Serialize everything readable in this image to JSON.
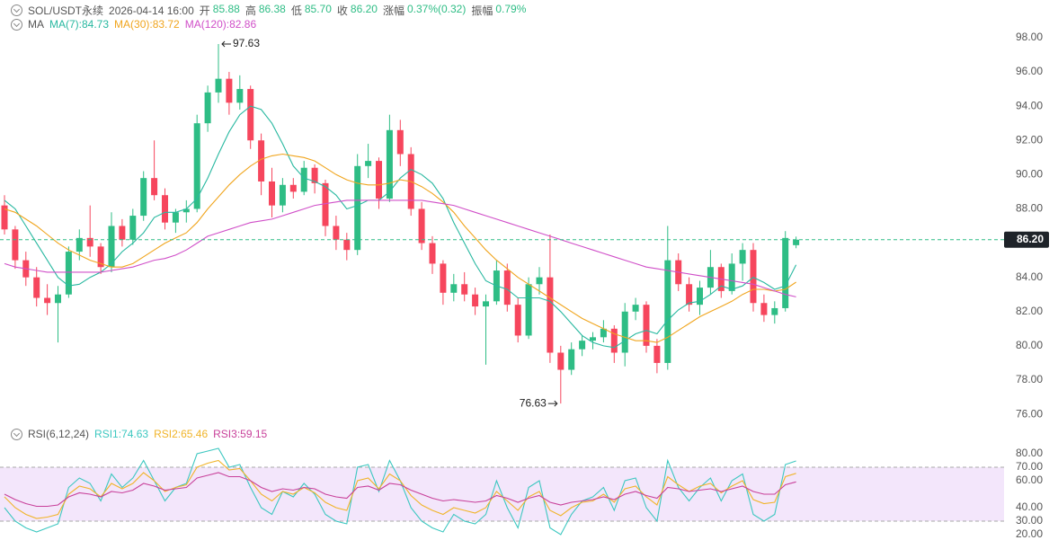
{
  "header": {
    "symbol": "SOL/USDT永续",
    "datetime": "2026-04-14 16:00",
    "fields": [
      {
        "label": "开",
        "value": "85.88"
      },
      {
        "label": "高",
        "value": "86.38"
      },
      {
        "label": "低",
        "value": "85.70"
      },
      {
        "label": "收",
        "value": "86.20"
      },
      {
        "label": "涨幅",
        "value": "0.37%(0.32)"
      },
      {
        "label": "振幅",
        "value": "0.79%"
      }
    ]
  },
  "chart_data": [
    {
      "type": "candlestick",
      "legend_title": "MA",
      "up_color": "#2ebd85",
      "down_color": "#f6465d",
      "ohlc": [
        [
          88.2,
          88.8,
          86.5,
          86.8
        ],
        [
          86.8,
          87.0,
          84.5,
          85.0
        ],
        [
          85.0,
          85.5,
          83.5,
          84.0
        ],
        [
          84.0,
          84.6,
          82.3,
          82.8
        ],
        [
          82.8,
          83.6,
          81.8,
          82.5
        ],
        [
          82.5,
          83.5,
          80.2,
          83.0
        ],
        [
          83.0,
          85.8,
          82.8,
          85.5
        ],
        [
          85.5,
          86.8,
          85.0,
          86.3
        ],
        [
          86.3,
          88.2,
          85.2,
          85.8
        ],
        [
          85.8,
          86.0,
          84.2,
          84.6
        ],
        [
          84.6,
          87.8,
          84.3,
          87.0
        ],
        [
          87.0,
          87.4,
          85.8,
          86.2
        ],
        [
          86.2,
          88.0,
          85.9,
          87.6
        ],
        [
          87.6,
          90.2,
          87.3,
          89.8
        ],
        [
          89.8,
          92.0,
          88.5,
          88.8
        ],
        [
          88.8,
          89.2,
          86.8,
          87.2
        ],
        [
          87.2,
          88.0,
          86.6,
          87.8
        ],
        [
          87.8,
          88.5,
          87.2,
          88.0
        ],
        [
          88.0,
          93.5,
          87.8,
          93.0
        ],
        [
          93.0,
          95.2,
          92.5,
          94.8
        ],
        [
          94.8,
          97.63,
          94.2,
          95.6
        ],
        [
          95.6,
          96.0,
          93.5,
          94.2
        ],
        [
          94.2,
          95.8,
          93.8,
          95.0
        ],
        [
          95.0,
          95.2,
          91.5,
          92.0
        ],
        [
          92.0,
          92.4,
          88.8,
          89.6
        ],
        [
          89.6,
          90.4,
          87.5,
          88.2
        ],
        [
          88.2,
          89.8,
          87.8,
          89.4
        ],
        [
          89.4,
          89.8,
          88.6,
          89.0
        ],
        [
          89.0,
          90.8,
          88.8,
          90.4
        ],
        [
          90.4,
          90.6,
          88.9,
          89.5
        ],
        [
          89.5,
          89.7,
          86.4,
          87.0
        ],
        [
          87.0,
          87.6,
          85.6,
          86.2
        ],
        [
          86.2,
          86.6,
          85.0,
          85.6
        ],
        [
          85.6,
          91.2,
          85.3,
          90.5
        ],
        [
          90.5,
          91.8,
          89.8,
          90.8
        ],
        [
          90.8,
          91.0,
          88.0,
          88.6
        ],
        [
          88.6,
          93.5,
          88.4,
          92.6
        ],
        [
          92.6,
          93.2,
          90.5,
          91.2
        ],
        [
          91.2,
          91.6,
          87.6,
          88.0
        ],
        [
          88.0,
          88.4,
          85.6,
          86.0
        ],
        [
          86.0,
          86.4,
          84.2,
          84.8
        ],
        [
          84.8,
          85.0,
          82.4,
          83.1
        ],
        [
          83.1,
          84.2,
          82.6,
          83.6
        ],
        [
          83.6,
          84.3,
          82.6,
          83.0
        ],
        [
          83.0,
          83.4,
          81.8,
          82.3
        ],
        [
          82.3,
          83.0,
          78.9,
          82.6
        ],
        [
          82.6,
          85.0,
          82.4,
          84.4
        ],
        [
          84.4,
          84.8,
          82.0,
          82.4
        ],
        [
          82.4,
          82.8,
          80.2,
          80.6
        ],
        [
          80.6,
          84.0,
          80.4,
          83.6
        ],
        [
          83.6,
          84.6,
          83.0,
          84.0
        ],
        [
          84.0,
          86.5,
          79.0,
          79.6
        ],
        [
          79.6,
          80.0,
          76.63,
          78.6
        ],
        [
          78.6,
          80.2,
          78.3,
          79.8
        ],
        [
          79.8,
          80.6,
          79.4,
          80.3
        ],
        [
          80.3,
          80.8,
          79.8,
          80.5
        ],
        [
          80.5,
          81.5,
          80.2,
          81.0
        ],
        [
          81.0,
          81.2,
          79.0,
          79.6
        ],
        [
          79.6,
          82.5,
          78.8,
          82.0
        ],
        [
          82.0,
          82.8,
          81.5,
          82.4
        ],
        [
          82.4,
          82.6,
          79.6,
          80.0
        ],
        [
          80.0,
          80.4,
          78.4,
          79.0
        ],
        [
          79.0,
          87.0,
          78.6,
          85.0
        ],
        [
          85.0,
          85.4,
          83.2,
          83.6
        ],
        [
          83.6,
          84.0,
          82.0,
          82.4
        ],
        [
          82.4,
          83.8,
          81.8,
          83.4
        ],
        [
          83.4,
          85.6,
          83.0,
          84.6
        ],
        [
          84.6,
          84.8,
          82.8,
          83.2
        ],
        [
          83.2,
          85.4,
          83.0,
          84.8
        ],
        [
          84.8,
          86.0,
          83.8,
          85.6
        ],
        [
          85.6,
          86.0,
          82.0,
          82.5
        ],
        [
          82.5,
          83.0,
          81.4,
          81.8
        ],
        [
          81.8,
          82.6,
          81.3,
          82.2
        ],
        [
          82.2,
          86.7,
          82.0,
          86.3
        ],
        [
          85.88,
          86.38,
          85.7,
          86.2
        ]
      ],
      "series": [
        {
          "name": "MA(7):84.73",
          "color": "#28b8a0",
          "values": [
            88.5,
            88,
            87,
            86,
            85,
            84,
            83.5,
            83.6,
            84,
            84.3,
            84.8,
            85.5,
            86,
            86.6,
            87.5,
            87.8,
            87.8,
            88,
            88.6,
            89.8,
            91.2,
            92.5,
            93.5,
            94,
            93.8,
            93,
            91.8,
            90.5,
            89.8,
            89.6,
            89.3,
            88.8,
            88,
            88.2,
            88.5,
            88.5,
            89,
            89.8,
            90.3,
            90,
            89.5,
            88.6,
            87.2,
            86,
            84.8,
            83.8,
            83.5,
            83.3,
            82.8,
            82.8,
            82.8,
            82.6,
            82,
            81.3,
            80.6,
            80.2,
            80,
            79.9,
            80.3,
            80.7,
            80.9,
            80.7,
            81.5,
            82.1,
            82.5,
            82.6,
            83,
            83.5,
            83.3,
            83.5,
            84,
            83.7,
            83.3,
            83.5,
            84.73
          ]
        },
        {
          "name": "MA(30):83.72",
          "color": "#f0a51e",
          "values": [
            88.0,
            87.8,
            87.4,
            87.0,
            86.5,
            86.0,
            85.6,
            85.3,
            85.0,
            84.8,
            84.6,
            84.6,
            84.8,
            85.2,
            85.6,
            86.0,
            86.3,
            86.6,
            87.2,
            88.0,
            88.7,
            89.4,
            90.0,
            90.5,
            90.9,
            91.1,
            91.2,
            91.1,
            91.0,
            90.8,
            90.4,
            90.0,
            89.7,
            89.5,
            89.4,
            89.4,
            89.5,
            89.7,
            89.6,
            89.3,
            88.9,
            88.4,
            87.8,
            87.0,
            86.3,
            85.6,
            85.0,
            84.5,
            84.0,
            83.6,
            83.2,
            82.8,
            82.4,
            82.0,
            81.6,
            81.3,
            81.0,
            80.7,
            80.5,
            80.3,
            80.3,
            80.2,
            80.5,
            80.9,
            81.3,
            81.7,
            82.0,
            82.3,
            82.6,
            83.0,
            83.3,
            83.3,
            83.2,
            83.3,
            83.72
          ]
        },
        {
          "name": "MA(120):82.86",
          "color": "#d04fc8",
          "values": [
            84.8,
            84.6,
            84.5,
            84.4,
            84.3,
            84.3,
            84.3,
            84.3,
            84.3,
            84.3,
            84.4,
            84.5,
            84.6,
            84.8,
            85.0,
            85.1,
            85.3,
            85.6,
            86.0,
            86.4,
            86.6,
            86.8,
            87.0,
            87.2,
            87.3,
            87.4,
            87.6,
            87.8,
            88.0,
            88.2,
            88.3,
            88.4,
            88.5,
            88.5,
            88.5,
            88.5,
            88.5,
            88.5,
            88.5,
            88.5,
            88.4,
            88.3,
            88.2,
            88.0,
            87.8,
            87.6,
            87.4,
            87.2,
            87.0,
            86.8,
            86.6,
            86.4,
            86.2,
            86.0,
            85.8,
            85.6,
            85.4,
            85.2,
            85.0,
            84.8,
            84.6,
            84.5,
            84.4,
            84.3,
            84.2,
            84.1,
            84.0,
            83.9,
            83.8,
            83.7,
            83.6,
            83.4,
            83.2,
            83.0,
            82.86
          ]
        }
      ],
      "last_price": {
        "value": 86.2,
        "label": "86.20"
      },
      "max_label": {
        "value": 97.63,
        "label": "97.63"
      },
      "min_label": {
        "value": 76.63,
        "label": "76.63"
      },
      "ylim": [
        75.27,
        100.2
      ],
      "yticks": [
        {
          "value": 76,
          "label": "76.00"
        },
        {
          "value": 78,
          "label": "78.00"
        },
        {
          "value": 80,
          "label": "80.00"
        },
        {
          "value": 82,
          "label": "82.00"
        },
        {
          "value": 84,
          "label": "84.00"
        },
        {
          "value": 86,
          "label": "86.00"
        },
        {
          "value": 88,
          "label": "88.00"
        },
        {
          "value": 90,
          "label": "90.00"
        },
        {
          "value": 92,
          "label": "92.00"
        },
        {
          "value": 94,
          "label": "94.00"
        },
        {
          "value": 96,
          "label": "96.00"
        },
        {
          "value": 98,
          "label": "98.00"
        }
      ],
      "grid": false
    },
    {
      "type": "line",
      "legend_title": "RSI(6,12,24)",
      "band": [
        30,
        70
      ],
      "band_color": "#f3e6fb",
      "series": [
        {
          "name": "RSI1:74.63",
          "color": "#3cc7c0",
          "values": [
            40,
            30,
            25,
            22,
            25,
            28,
            55,
            62,
            58,
            45,
            65,
            55,
            62,
            75,
            60,
            45,
            55,
            58,
            80,
            82,
            84,
            70,
            72,
            55,
            40,
            35,
            52,
            48,
            58,
            50,
            35,
            30,
            28,
            70,
            72,
            52,
            75,
            60,
            40,
            30,
            25,
            22,
            35,
            30,
            28,
            35,
            60,
            40,
            25,
            55,
            60,
            25,
            20,
            35,
            45,
            48,
            55,
            38,
            60,
            62,
            40,
            30,
            75,
            55,
            45,
            55,
            62,
            45,
            60,
            65,
            35,
            30,
            35,
            72,
            74.63
          ]
        },
        {
          "name": "RSI2:65.46",
          "color": "#f0b429",
          "values": [
            48,
            40,
            35,
            32,
            33,
            35,
            50,
            56,
            54,
            48,
            58,
            54,
            58,
            66,
            60,
            52,
            55,
            57,
            70,
            73,
            75,
            68,
            69,
            60,
            50,
            45,
            52,
            50,
            55,
            51,
            44,
            40,
            38,
            60,
            62,
            54,
            65,
            60,
            49,
            42,
            38,
            35,
            40,
            38,
            36,
            40,
            52,
            45,
            38,
            48,
            52,
            38,
            34,
            40,
            44,
            45,
            50,
            44,
            54,
            56,
            48,
            42,
            63,
            57,
            52,
            56,
            58,
            51,
            56,
            60,
            46,
            43,
            44,
            63,
            65.46
          ]
        },
        {
          "name": "RSI3:59.15",
          "color": "#c8409a",
          "values": [
            50,
            46,
            43,
            41,
            41,
            42,
            48,
            51,
            50,
            48,
            52,
            51,
            53,
            58,
            56,
            53,
            54,
            55,
            62,
            64,
            66,
            63,
            63,
            60,
            55,
            52,
            54,
            53,
            55,
            54,
            50,
            48,
            47,
            55,
            56,
            53,
            58,
            57,
            53,
            50,
            47,
            45,
            46,
            45,
            44,
            45,
            49,
            47,
            44,
            47,
            49,
            44,
            42,
            44,
            45,
            46,
            48,
            46,
            50,
            52,
            49,
            47,
            55,
            54,
            52,
            53,
            54,
            52,
            54,
            56,
            52,
            50,
            50,
            57,
            59.15
          ]
        }
      ],
      "ylim": [
        13.3,
        90
      ],
      "yticks": [
        {
          "value": 20,
          "label": "20.00"
        },
        {
          "value": 30,
          "label": "30.00"
        },
        {
          "value": 40,
          "label": "40.00"
        },
        {
          "value": 60,
          "label": "60.00"
        },
        {
          "value": 70,
          "label": "70.00"
        },
        {
          "value": 80,
          "label": "80.00"
        }
      ]
    }
  ]
}
